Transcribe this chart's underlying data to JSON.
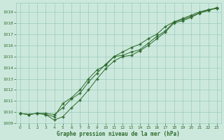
{
  "title": "Graphe pression niveau de la mer (hPa)",
  "xlabel_hours": [
    0,
    1,
    2,
    3,
    4,
    5,
    6,
    7,
    8,
    9,
    10,
    11,
    12,
    13,
    14,
    15,
    16,
    17,
    18,
    19,
    20,
    21,
    22,
    23
  ],
  "ylim": [
    1009,
    1019.8
  ],
  "yticks": [
    1009,
    1010,
    1011,
    1012,
    1013,
    1014,
    1015,
    1016,
    1017,
    1018,
    1019
  ],
  "line1": [
    1009.9,
    1009.8,
    1009.9,
    1009.8,
    1009.6,
    1010.8,
    1011.3,
    1012.0,
    1013.0,
    1013.8,
    1014.2,
    1015.0,
    1015.1,
    1015.4,
    1015.6,
    1016.2,
    1016.8,
    1017.3,
    1018.1,
    1018.4,
    1018.7,
    1019.0,
    1019.2,
    1019.3
  ],
  "line2": [
    1009.9,
    1009.8,
    1009.9,
    1009.8,
    1009.3,
    1009.6,
    1010.4,
    1011.1,
    1012.0,
    1013.0,
    1013.9,
    1014.6,
    1015.0,
    1015.1,
    1015.5,
    1016.0,
    1016.6,
    1017.2,
    1018.0,
    1018.2,
    1018.5,
    1018.9,
    1019.2,
    1019.3
  ],
  "line3": [
    1009.9,
    1009.8,
    1009.9,
    1009.9,
    1009.8,
    1010.4,
    1011.2,
    1011.7,
    1012.7,
    1013.5,
    1014.3,
    1015.0,
    1015.4,
    1015.8,
    1016.1,
    1016.6,
    1017.0,
    1017.7,
    1018.1,
    1018.3,
    1018.6,
    1018.9,
    1019.1,
    1019.4
  ],
  "line_color": "#2d6a2d",
  "bg_color": "#cce8dc",
  "grid_color": "#99ccbb",
  "font_color": "#2d6a2d",
  "marker": "+",
  "marker_size": 3.5,
  "linewidth": 0.7
}
